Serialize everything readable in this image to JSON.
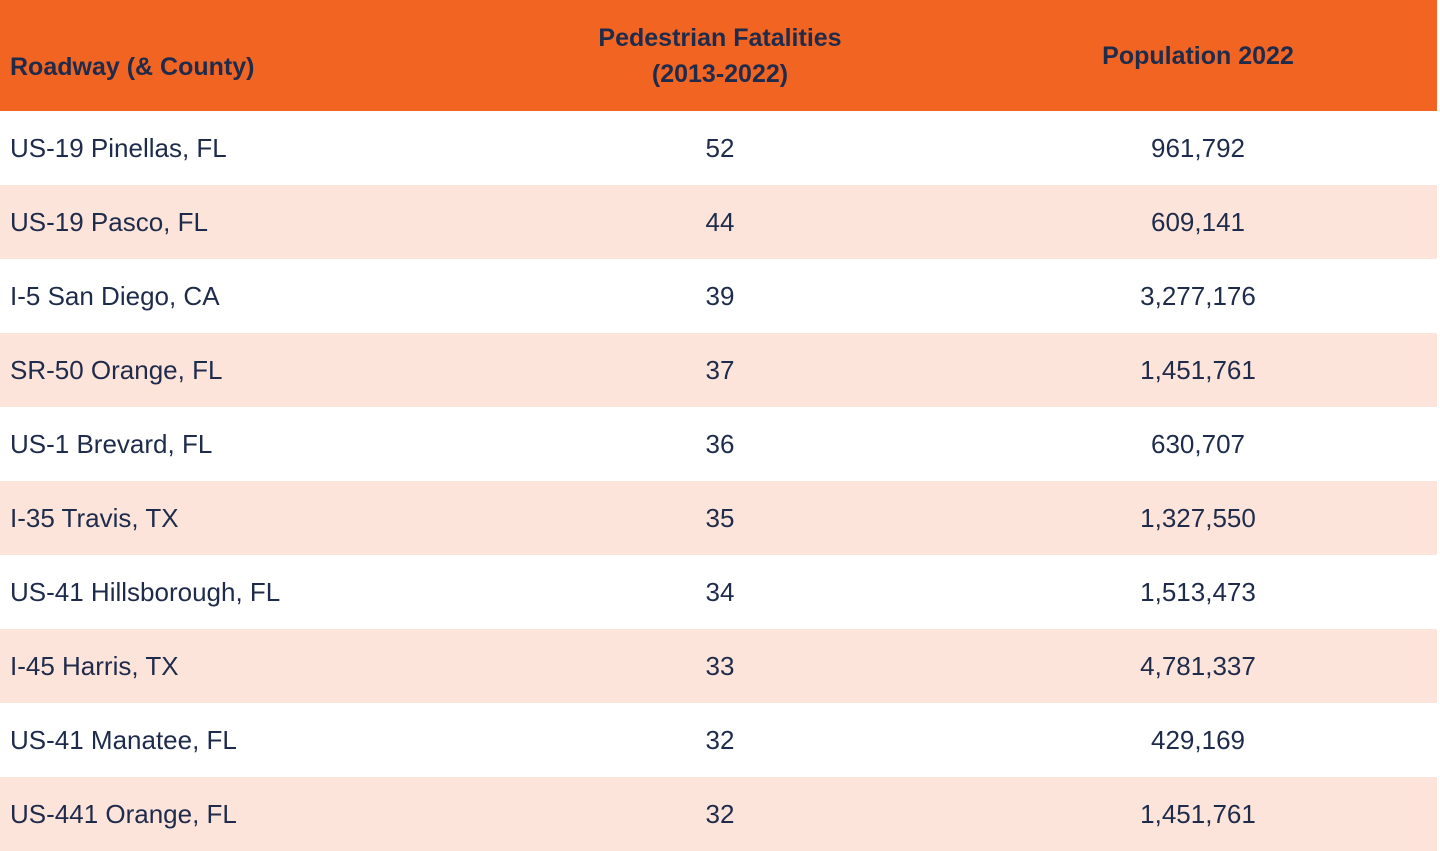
{
  "table": {
    "header": {
      "roadway": "Roadway (& County)",
      "fatalities_line1": "Pedestrian Fatalities",
      "fatalities_line2": "(2013-2022)",
      "population": "Population 2022"
    },
    "rows": [
      {
        "roadway": "US-19 Pinellas, FL",
        "fatalities": "52",
        "population": "961,792"
      },
      {
        "roadway": "US-19 Pasco, FL",
        "fatalities": "44",
        "population": "609,141"
      },
      {
        "roadway": "I-5 San Diego, CA",
        "fatalities": "39",
        "population": "3,277,176"
      },
      {
        "roadway": "SR-50 Orange, FL",
        "fatalities": "37",
        "population": "1,451,761"
      },
      {
        "roadway": "US-1 Brevard, FL",
        "fatalities": "36",
        "population": "630,707"
      },
      {
        "roadway": "I-35 Travis, TX",
        "fatalities": "35",
        "population": "1,327,550"
      },
      {
        "roadway": "US-41 Hillsborough, FL",
        "fatalities": "34",
        "population": "1,513,473"
      },
      {
        "roadway": "I-45 Harris, TX",
        "fatalities": "33",
        "population": "4,781,337"
      },
      {
        "roadway": "US-41 Manatee, FL",
        "fatalities": "32",
        "population": "429,169"
      },
      {
        "roadway": "US-441 Orange, FL",
        "fatalities": "32",
        "population": "1,451,761"
      }
    ]
  },
  "colors": {
    "header_bg": "#F26422",
    "alt_row_bg": "#FCE4DA",
    "row_bg": "#FFFFFF",
    "text": "#1F2B4B"
  },
  "chart_data": {
    "type": "table",
    "title": "",
    "columns": [
      "Roadway (& County)",
      "Pedestrian Fatalities (2013-2022)",
      "Population 2022"
    ],
    "rows": [
      [
        "US-19 Pinellas, FL",
        52,
        961792
      ],
      [
        "US-19 Pasco, FL",
        44,
        609141
      ],
      [
        "I-5 San Diego, CA",
        39,
        3277176
      ],
      [
        "SR-50 Orange, FL",
        37,
        1451761
      ],
      [
        "US-1 Brevard, FL",
        36,
        630707
      ],
      [
        "I-35 Travis, TX",
        35,
        1327550
      ],
      [
        "US-41 Hillsborough, FL",
        34,
        1513473
      ],
      [
        "I-45 Harris, TX",
        33,
        4781337
      ],
      [
        "US-41 Manatee, FL",
        32,
        429169
      ],
      [
        "US-441 Orange, FL",
        32,
        1451761
      ]
    ],
    "layout_hints": {
      "header_style": "orange banner, bold navy text",
      "row_striping": "white / light peach alternating",
      "column_alignment": [
        "left",
        "center",
        "center"
      ]
    }
  }
}
